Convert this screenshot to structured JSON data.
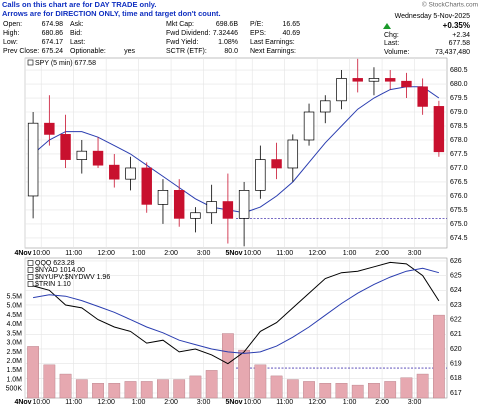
{
  "header": {
    "notice_lines": [
      "Calls on this chart are for DAY TRADE only.",
      "Arrows are for DIRECTION ONLY, time and target don't count."
    ],
    "copyright": "© StockCharts.com"
  },
  "quote": {
    "rows": [
      [
        {
          "label": "Open:",
          "value": 674.98
        },
        {
          "label": "Ask:"
        },
        {
          "label": "Mkt Cap:",
          "value": "698.6B"
        },
        {
          "label": "P/E:",
          "value": 16.65
        }
      ],
      [
        {
          "label": "High:",
          "value": 680.86
        },
        {
          "label": "Bid:"
        },
        {
          "label": "Fwd Dividend:",
          "value": 7.32446
        },
        {
          "label": "EPS:",
          "value": 40.69
        }
      ],
      [
        {
          "label": "Low:",
          "value": 674.17
        },
        {
          "label": "Last:"
        },
        {
          "label": "Fwd Yield:",
          "value": "1.08%"
        },
        {
          "label": "Last Earnings:"
        }
      ],
      [
        {
          "label": "Prev Close:",
          "value": 675.24
        },
        {
          "label": "Optionable:",
          "value": "yes"
        },
        {
          "label": "SCTR (ETF):",
          "value": "80.0"
        },
        {
          "label": "Next Earnings:"
        }
      ]
    ],
    "date": "Wednesday  5-Nov-2025",
    "change_pct": "+0.35%",
    "change_label": "Chg:",
    "change": "+2.34",
    "last_label": "Last:",
    "last": 677.58,
    "volume_label": "Volume:",
    "volume": "73,437,480"
  },
  "chart_data": [
    {
      "type": "candlestick",
      "legend_label": "SPY (5 min) 677.58",
      "categories": [
        "4Nov",
        "10:00",
        null,
        "11:00",
        null,
        "12:00",
        null,
        "1:00",
        null,
        "2:00",
        null,
        "3:00",
        null,
        "5Nov",
        "10:00",
        null,
        "11:00",
        null,
        "12:00",
        null,
        "1:00",
        null,
        "2:00",
        null,
        "3:00",
        null
      ],
      "open": [
        676.0,
        678.6,
        678.2,
        677.3,
        677.6,
        677.1,
        676.6,
        677.0,
        675.7,
        676.2,
        675.2,
        675.4,
        675.8,
        675.2,
        676.2,
        677.3,
        677.0,
        678.0,
        679.0,
        679.4,
        680.2,
        680.1,
        680.2,
        680.1,
        679.9,
        679.2
      ],
      "high": [
        679.0,
        679.6,
        678.9,
        678.0,
        678.1,
        677.5,
        677.4,
        677.2,
        676.6,
        676.6,
        675.6,
        676.4,
        676.8,
        676.5,
        677.8,
        677.9,
        678.2,
        679.3,
        679.6,
        680.5,
        680.9,
        680.6,
        680.5,
        680.4,
        680.2,
        679.4
      ],
      "low": [
        675.2,
        677.8,
        677.0,
        676.8,
        677.0,
        676.3,
        676.2,
        675.4,
        675.0,
        674.9,
        674.7,
        675.0,
        674.3,
        674.2,
        675.9,
        676.6,
        676.5,
        677.8,
        678.6,
        679.1,
        679.7,
        679.6,
        679.8,
        679.5,
        678.9,
        677.4
      ],
      "close": [
        678.6,
        678.2,
        677.3,
        677.6,
        677.1,
        676.6,
        677.0,
        675.7,
        676.2,
        675.2,
        675.4,
        675.8,
        675.2,
        676.2,
        677.3,
        677.0,
        678.0,
        679.0,
        679.4,
        680.2,
        680.1,
        680.2,
        680.1,
        679.9,
        679.2,
        677.58
      ],
      "up_color": "#000000",
      "down_color": "#c8102e",
      "ma": {
        "color": "#2a3db0",
        "values": [
          677.5,
          678.0,
          678.3,
          678.3,
          678.1,
          677.8,
          677.5,
          677.1,
          676.7,
          676.3,
          675.9,
          675.6,
          675.5,
          675.4,
          675.6,
          676.0,
          676.5,
          677.2,
          677.9,
          678.5,
          679.1,
          679.5,
          679.8,
          679.9,
          679.9,
          679.5
        ]
      },
      "level": 675.2,
      "level_color": "#4a3ab0",
      "ylim": [
        674.14,
        680.93
      ],
      "yticks": [
        674.5,
        {
          "value": 675,
          "label": "675.0"
        },
        675.5,
        {
          "value": 676,
          "label": "676.0"
        },
        676.5,
        {
          "value": 677,
          "label": "677.0"
        },
        677.5,
        {
          "value": 678,
          "label": "678.0"
        },
        678.5,
        {
          "value": 679,
          "label": "679.0"
        },
        679.5,
        {
          "value": 680,
          "label": "680.0"
        },
        680.5
      ],
      "grid": true
    },
    {
      "type": "line",
      "categories": [
        "4Nov",
        "10:00",
        null,
        "11:00",
        null,
        "12:00",
        null,
        "1:00",
        null,
        "2:00",
        null,
        "3:00",
        null,
        "5Nov",
        "10:00",
        null,
        "11:00",
        null,
        "12:00",
        null,
        "1:00",
        null,
        "2:00",
        null,
        "3:00",
        null
      ],
      "series": [
        {
          "name": "QQQ 623.28",
          "color": "#000000",
          "values": [
            624.3,
            624.0,
            623.0,
            622.8,
            622.0,
            621.5,
            621.2,
            620.4,
            620.6,
            619.8,
            620.0,
            619.6,
            619.0,
            619.8,
            621.2,
            621.8,
            622.8,
            623.8,
            624.8,
            625.2,
            625.3,
            625.6,
            625.9,
            625.8,
            625.0,
            623.28
          ]
        },
        {
          "color": "#2a3db0",
          "values": [
            623.5,
            623.7,
            623.6,
            623.3,
            622.9,
            622.5,
            622.0,
            621.5,
            621.1,
            620.6,
            620.3,
            620.0,
            619.8,
            619.7,
            619.8,
            620.2,
            620.8,
            621.5,
            622.3,
            623.1,
            623.8,
            624.4,
            624.9,
            625.3,
            625.5,
            625.2
          ]
        },
        {
          "name": "Volume",
          "color": "#e6a8b0",
          "axis": "y2",
          "values": [
            2800000,
            1800000,
            1300000,
            1000000,
            800000,
            800000,
            900000,
            900000,
            1000000,
            1000000,
            1200000,
            1500000,
            3500000,
            2600000,
            1800000,
            1200000,
            1000000,
            900000,
            800000,
            800000,
            700000,
            800000,
            900000,
            1100000,
            1300000,
            4500000
          ]
        }
      ],
      "legend_extra": [
        "$NYAD 1014.00",
        "$NYUPV:$NYDWV 1.96",
        "$TRIN 1.10"
      ],
      "level": 618.7,
      "level_color": "#4a3ab0",
      "ylim": [
        616.66,
        626.2
      ],
      "yticks": [
        617,
        618,
        619,
        620,
        621,
        622,
        623,
        624,
        625,
        626
      ],
      "y2lim": [
        0,
        7600000
      ],
      "y2ticks": [
        {
          "value": 500000,
          "label": "500K"
        },
        {
          "value": 1000000,
          "label": "1.0M"
        },
        {
          "value": 1500000,
          "label": "1.5M"
        },
        {
          "value": 2000000,
          "label": "2.0M"
        },
        {
          "value": 2500000,
          "label": "2.5M"
        },
        {
          "value": 3000000,
          "label": "3.0M"
        },
        {
          "value": 3500000,
          "label": "3.5M"
        },
        {
          "value": 4000000,
          "label": "4.0M"
        },
        {
          "value": 4500000,
          "label": "4.5M"
        },
        {
          "value": 5000000,
          "label": "5.0M"
        },
        {
          "value": 5500000,
          "label": "5.5M"
        }
      ],
      "grid": true
    }
  ]
}
